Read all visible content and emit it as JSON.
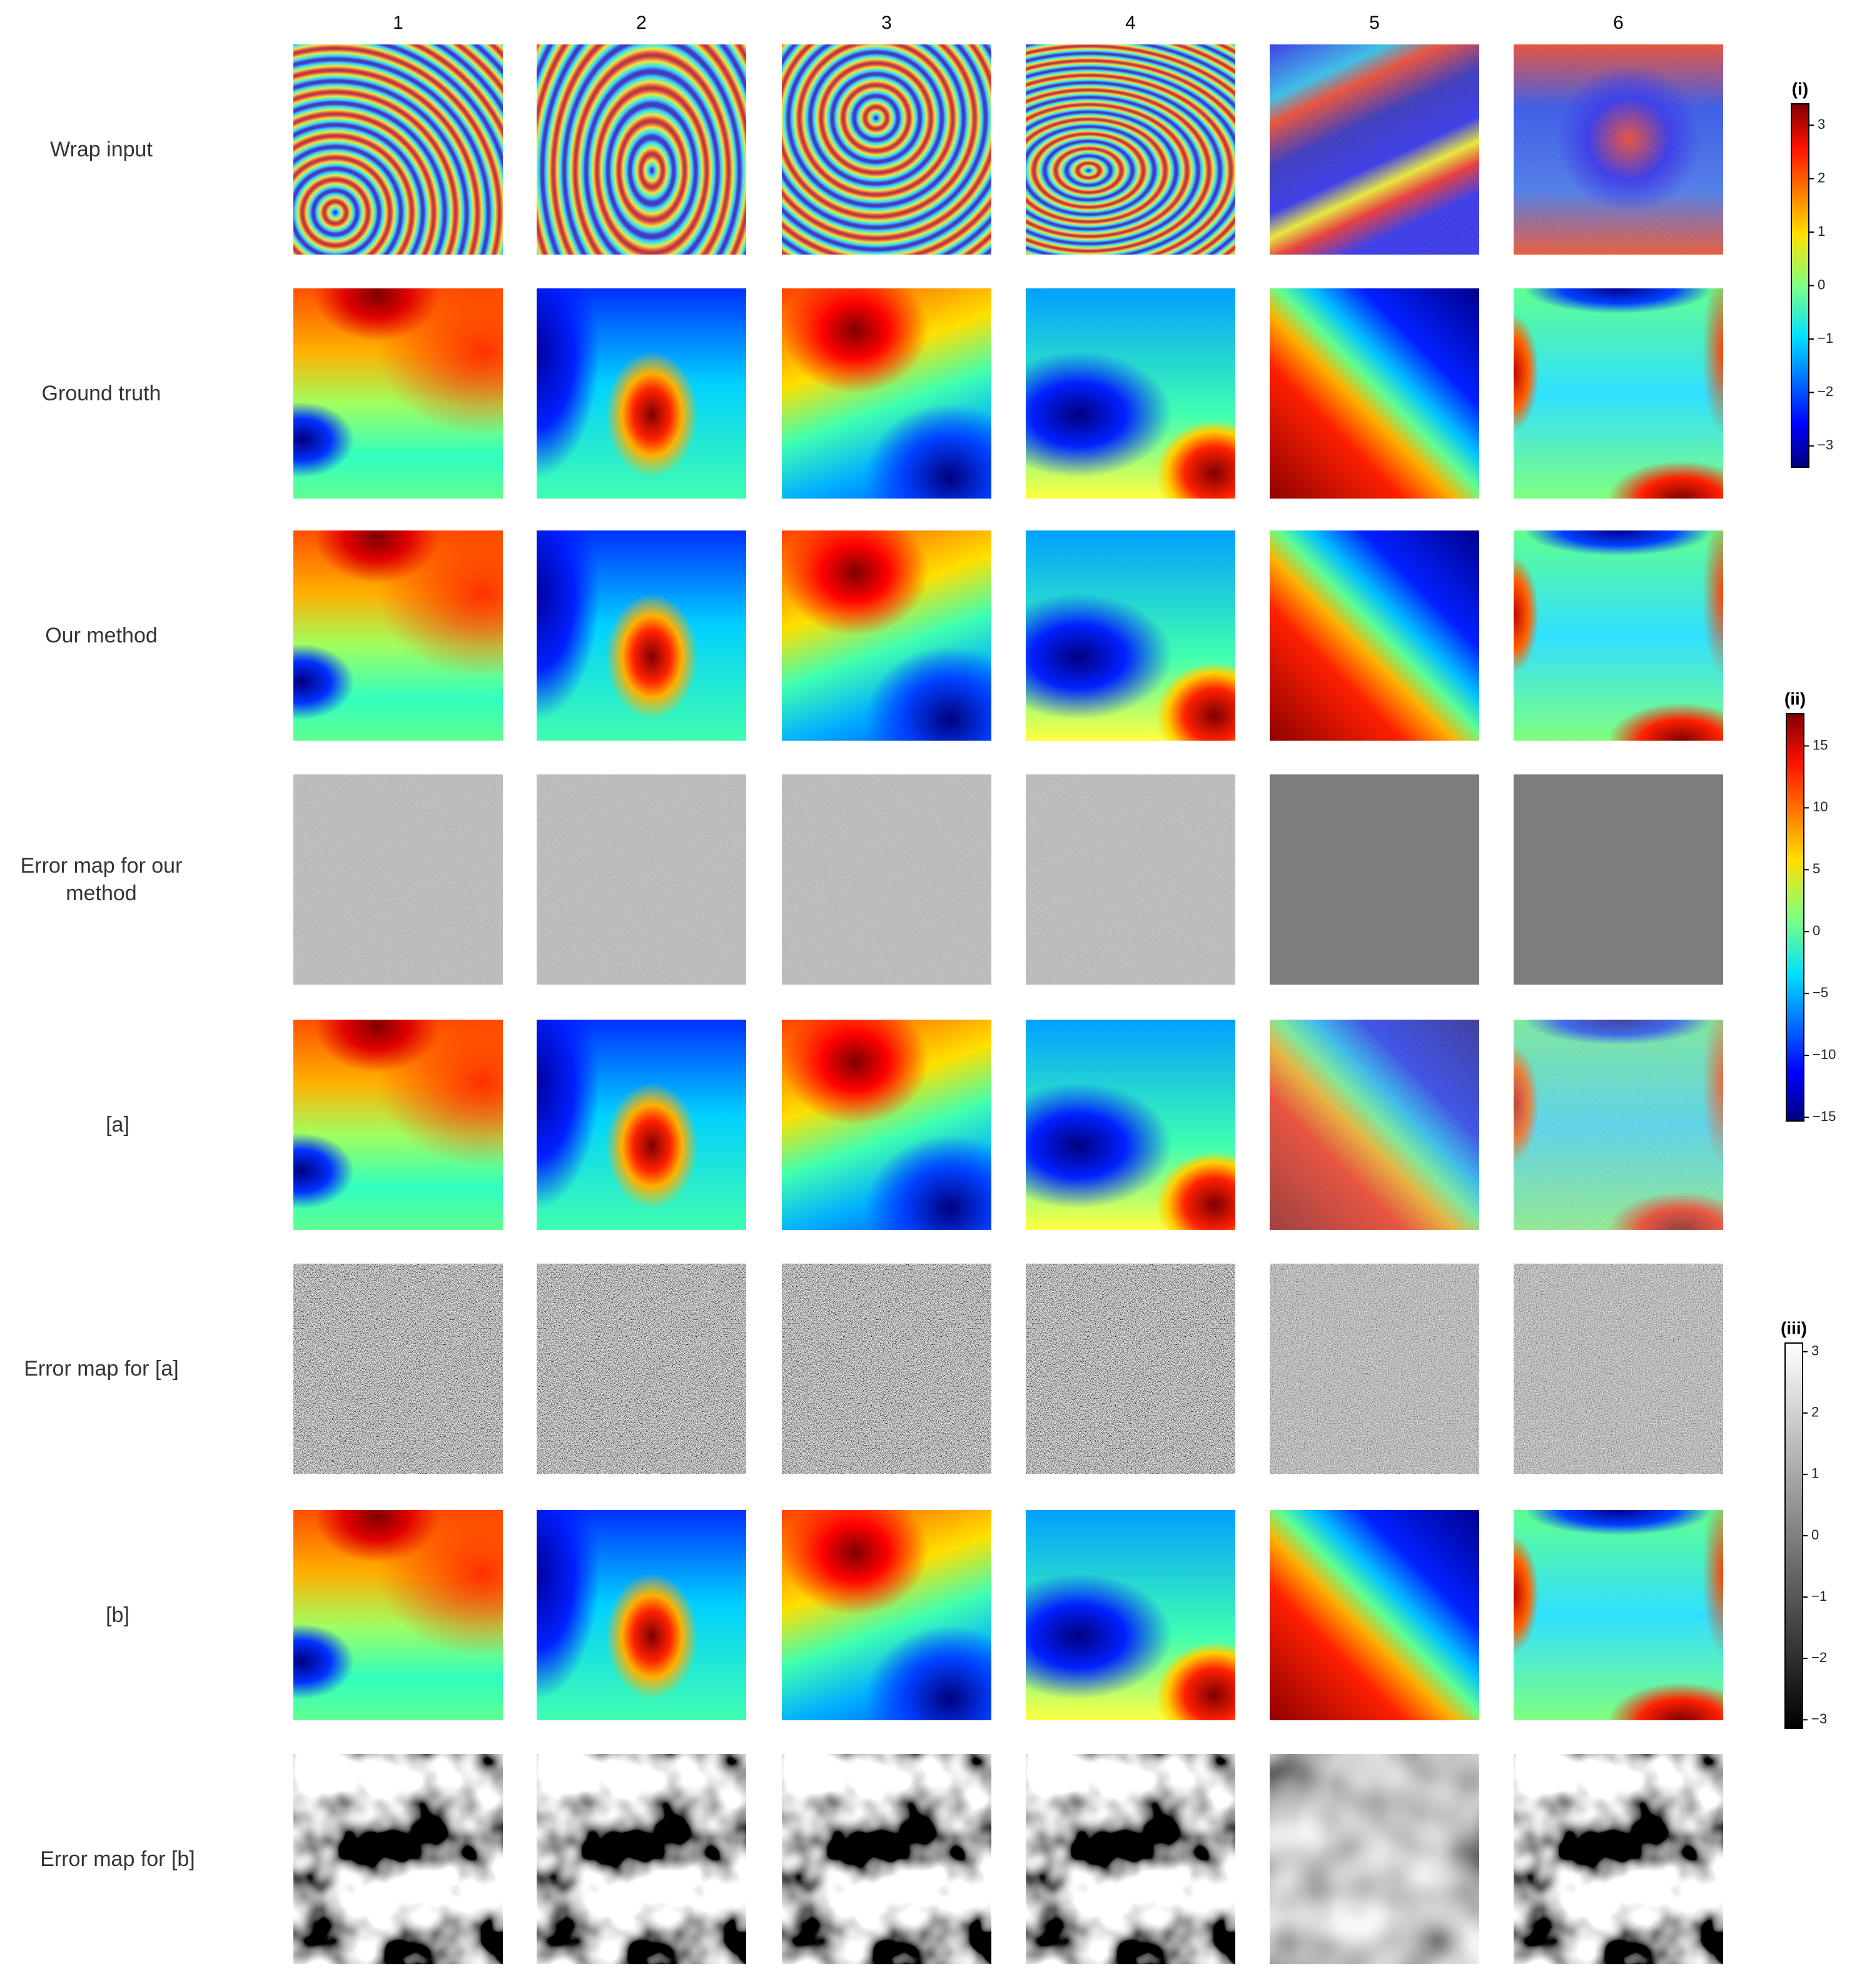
{
  "columns": [
    "1",
    "2",
    "3",
    "4",
    "5",
    "6"
  ],
  "rows": [
    "Wrap input",
    "Ground truth",
    "Our method",
    "Error map for our method",
    "[a]",
    "Error map for [a]",
    "[b]",
    "Error map for [b]"
  ],
  "colorbars": [
    {
      "label": "(i)",
      "range": [
        -3.4,
        3.4
      ],
      "ticks": [
        {
          "value": -3,
          "label": "−3"
        },
        {
          "value": -2,
          "label": "−2"
        },
        {
          "value": -1,
          "label": "−1"
        },
        0,
        1,
        2,
        3
      ]
    },
    {
      "label": "(ii)",
      "range": [
        -15.3,
        17.6
      ],
      "ticks": [
        {
          "value": -15,
          "label": "−15"
        },
        {
          "value": -10,
          "label": "−10"
        },
        {
          "value": -5,
          "label": "−5"
        },
        0,
        5,
        10,
        15
      ]
    },
    {
      "label": "(iii)",
      "range": [
        -3.14,
        3.14
      ],
      "ticks": [
        {
          "value": -3,
          "label": "−3"
        },
        {
          "value": -2,
          "label": "−2"
        },
        {
          "value": -1,
          "label": "−1"
        },
        0,
        1,
        2,
        3
      ]
    }
  ]
}
